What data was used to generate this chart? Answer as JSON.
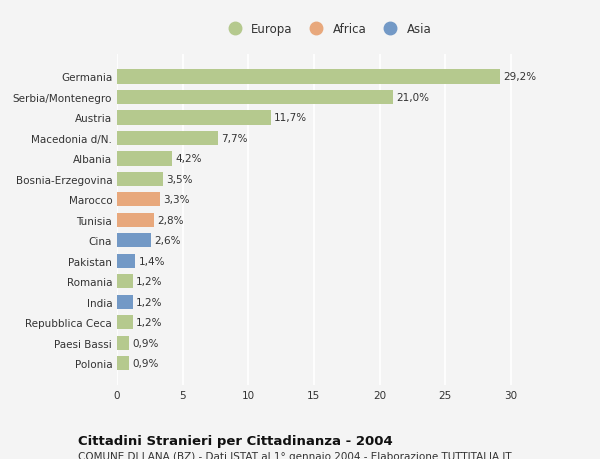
{
  "countries": [
    "Germania",
    "Serbia/Montenegro",
    "Austria",
    "Macedonia d/N.",
    "Albania",
    "Bosnia-Erzegovina",
    "Marocco",
    "Tunisia",
    "Cina",
    "Pakistan",
    "Romania",
    "India",
    "Repubblica Ceca",
    "Paesi Bassi",
    "Polonia"
  ],
  "values": [
    29.2,
    21.0,
    11.7,
    7.7,
    4.2,
    3.5,
    3.3,
    2.8,
    2.6,
    1.4,
    1.2,
    1.2,
    1.2,
    0.9,
    0.9
  ],
  "labels": [
    "29,2%",
    "21,0%",
    "11,7%",
    "7,7%",
    "4,2%",
    "3,5%",
    "3,3%",
    "2,8%",
    "2,6%",
    "1,4%",
    "1,2%",
    "1,2%",
    "1,2%",
    "0,9%",
    "0,9%"
  ],
  "continent": [
    "Europa",
    "Europa",
    "Europa",
    "Europa",
    "Europa",
    "Europa",
    "Africa",
    "Africa",
    "Asia",
    "Asia",
    "Europa",
    "Asia",
    "Europa",
    "Europa",
    "Europa"
  ],
  "color_europa": "#b5c98e",
  "color_africa": "#e8a87c",
  "color_asia": "#7399c6",
  "xlim": [
    0,
    32
  ],
  "xticks": [
    0,
    5,
    10,
    15,
    20,
    25,
    30
  ],
  "bg_color": "#f4f4f4",
  "grid_color": "#ffffff",
  "bar_height": 0.7,
  "label_fontsize": 7.5,
  "title": "Cittadini Stranieri per Cittadinanza - 2004",
  "subtitle": "COMUNE DI LANA (BZ) - Dati ISTAT al 1° gennaio 2004 - Elaborazione TUTTITALIA.IT",
  "title_fontsize": 9.5,
  "subtitle_fontsize": 7.5,
  "tick_fontsize": 7.5,
  "legend_fontsize": 8.5
}
